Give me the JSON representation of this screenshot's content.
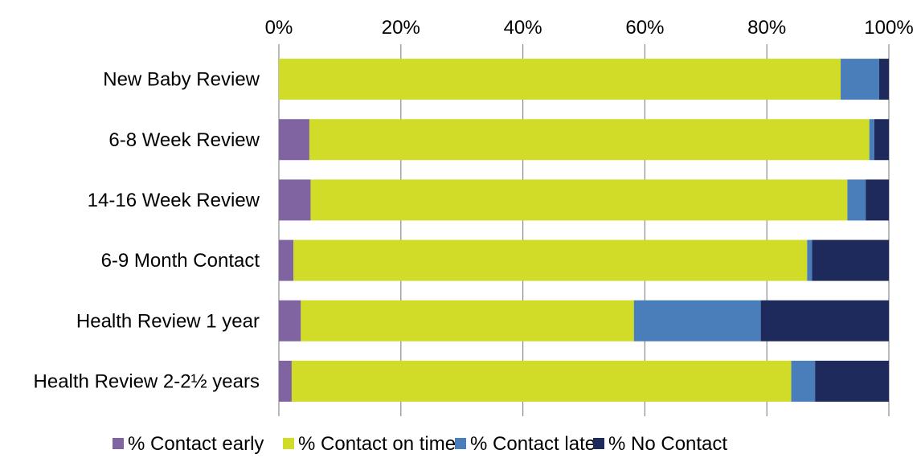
{
  "chart_data": {
    "type": "bar",
    "orientation": "horizontal",
    "stacked": "percent",
    "categories": [
      "New Baby Review",
      "6-8 Week Review",
      "14-16 Week Review",
      "6-9 Month Contact",
      "Health Review 1 year",
      "Health Review 2-2½ years"
    ],
    "series": [
      {
        "name": "% Contact early",
        "color": "#8064a2",
        "values": [
          0,
          5,
          5.2,
          2.4,
          3.6,
          2.1
        ]
      },
      {
        "name": "% Contact on time",
        "color": "#d0dc28",
        "values": [
          92.1,
          91.8,
          88.0,
          84.2,
          54.6,
          81.9
        ]
      },
      {
        "name": "% Contact late",
        "color": "#4a7ebb",
        "values": [
          6.3,
          0.8,
          3.0,
          0.8,
          20.8,
          3.9
        ]
      },
      {
        "name": "% No Contact",
        "color": "#1f2a5c",
        "values": [
          1.6,
          2.4,
          3.8,
          12.6,
          21.0,
          12.1
        ]
      }
    ],
    "x_ticks": [
      "0%",
      "20%",
      "40%",
      "60%",
      "80%",
      "100%"
    ],
    "xlim": [
      0,
      100
    ],
    "axis_position": "top",
    "grid": true,
    "legend_position": "bottom",
    "title": "",
    "xlabel": "",
    "ylabel": ""
  }
}
